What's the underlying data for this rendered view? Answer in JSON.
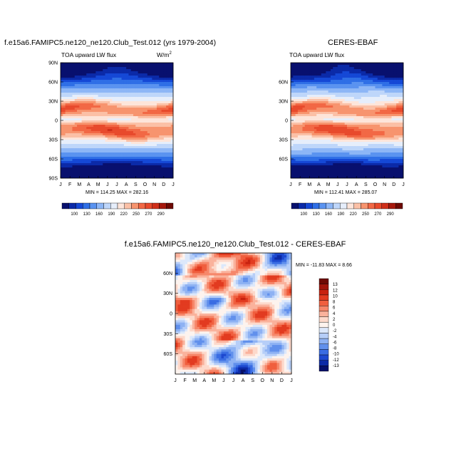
{
  "panels": [
    {
      "title": "f.e15a6.FAMIPC5.ne120_ne120.Club_Test.012 (yrs 1979-2004)",
      "subtitle": "TOA upward LW flux",
      "units": "W/m",
      "units_exp": "2",
      "minmax": "MIN = 114.25  MAX = 282.16"
    },
    {
      "title": "CERES-EBAF",
      "subtitle": "TOA upward LW flux",
      "minmax": "MIN = 112.41  MAX = 285.07"
    },
    {
      "title": "f.e15a6.FAMIPC5.ne120_ne120.Club_Test.012 - CERES-EBAF",
      "minmax": "MIN = -11.83  MAX =   8.66"
    }
  ],
  "chart_data": [
    {
      "type": "heatmap",
      "title": "f.e15a6.FAMIPC5.ne120_ne120.Club_Test.012 (yrs 1979-2004)",
      "subtitle": "TOA upward LW flux",
      "x_ticks": [
        "J",
        "F",
        "M",
        "A",
        "M",
        "J",
        "J",
        "A",
        "S",
        "O",
        "N",
        "D",
        "J"
      ],
      "y_ticks": [
        "90N",
        "60N",
        "30N",
        "0",
        "30S",
        "60S",
        "90S"
      ],
      "min": 114.25,
      "max": 282.16,
      "colorbar_labels": [
        "100",
        "130",
        "160",
        "190",
        "220",
        "250",
        "270",
        "290"
      ]
    },
    {
      "type": "heatmap",
      "title": "CERES-EBAF",
      "subtitle": "TOA upward LW flux",
      "x_ticks": [
        "J",
        "F",
        "M",
        "A",
        "M",
        "J",
        "J",
        "A",
        "S",
        "O",
        "N",
        "D",
        "J"
      ],
      "y_ticks": [
        "60N",
        "30N",
        "0",
        "30S",
        "60S"
      ],
      "min": 112.41,
      "max": 285.07,
      "colorbar_labels": [
        "100",
        "130",
        "160",
        "190",
        "220",
        "250",
        "270",
        "290"
      ]
    },
    {
      "type": "heatmap",
      "title": "f.e15a6.FAMIPC5.ne120_ne120.Club_Test.012 - CERES-EBAF",
      "x_ticks": [
        "J",
        "F",
        "M",
        "A",
        "M",
        "J",
        "J",
        "A",
        "S",
        "O",
        "N",
        "D",
        "J"
      ],
      "y_ticks": [
        "60N",
        "30N",
        "0",
        "30S",
        "60S"
      ],
      "min": -11.83,
      "max": 8.66,
      "colorbar_labels": [
        "13",
        "12",
        "10",
        "8",
        "6",
        "4",
        "2",
        "0",
        "-2",
        "-4",
        "-6",
        "-8",
        "-10",
        "-12",
        "-13"
      ]
    }
  ],
  "colors": {
    "abs_scale": [
      "#08106e",
      "#0b2aa8",
      "#1548d6",
      "#2f6fe6",
      "#5a93f0",
      "#8db6f6",
      "#bed6fa",
      "#e6eefb",
      "#fde5da",
      "#fbc0a6",
      "#f7946e",
      "#f26845",
      "#e84a2c",
      "#cf2f1a",
      "#a6180c",
      "#6e0a04"
    ],
    "diff_scale": [
      "#6e0a04",
      "#a0150b",
      "#c8220f",
      "#e23b20",
      "#f05f3e",
      "#f6876a",
      "#fab29c",
      "#fdd9cb",
      "#fdf3ee",
      "#dce8fb",
      "#b6cef8",
      "#8eb2f3",
      "#6190ec",
      "#3a6de3",
      "#1d49d0",
      "#0c2aa6",
      "#06106a"
    ]
  }
}
